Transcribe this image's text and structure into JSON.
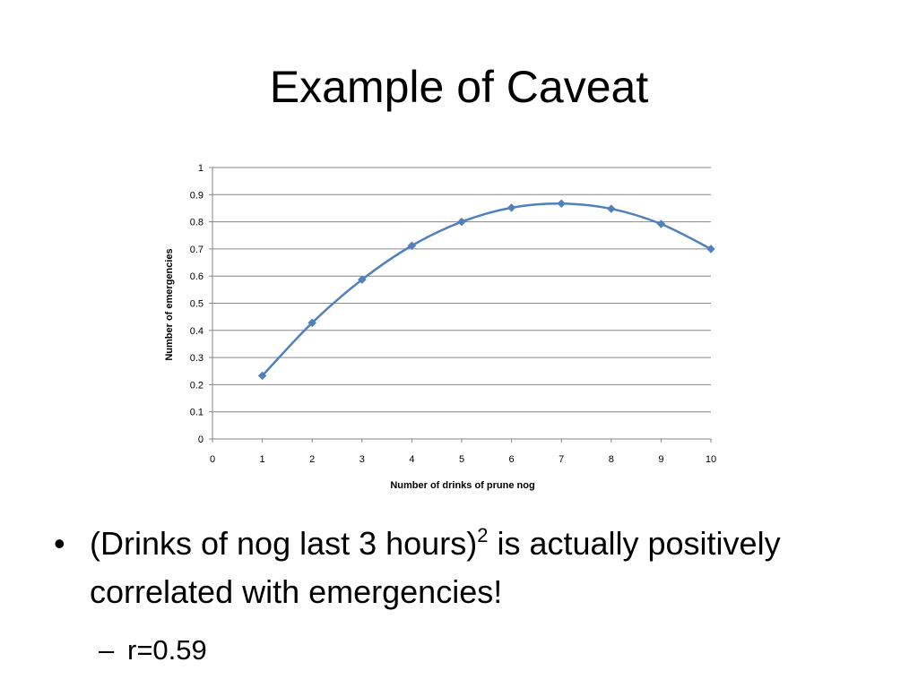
{
  "slide": {
    "title": "Example of Caveat",
    "bullet": {
      "marker": "•",
      "text_before": "(Drinks of nog last 3 hours)",
      "superscript": "2",
      "text_after": " is actually positively correlated with emergencies!"
    },
    "sub_bullet": {
      "marker": "–",
      "text": "r=0.59"
    }
  },
  "chart_data": {
    "type": "line",
    "title": "",
    "xlabel": "Number of drinks of prune nog",
    "ylabel": "Number of emergencies",
    "xlim": [
      0,
      10
    ],
    "ylim": [
      0,
      1
    ],
    "x_ticks": [
      "0",
      "1",
      "2",
      "3",
      "4",
      "5",
      "6",
      "7",
      "8",
      "9",
      "10"
    ],
    "y_ticks": [
      "0",
      "0.1",
      "0.2",
      "0.3",
      "0.4",
      "0.5",
      "0.6",
      "0.7",
      "0.8",
      "0.9",
      "1"
    ],
    "grid": true,
    "legend": "none",
    "series": [
      {
        "x": [
          1,
          2,
          3,
          4,
          5,
          6,
          7,
          8,
          9,
          10
        ],
        "values": [
          0.233,
          0.428,
          0.587,
          0.712,
          0.8,
          0.852,
          0.867,
          0.848,
          0.792,
          0.7
        ],
        "color": "#4F81BD",
        "marker": "diamond",
        "smooth": true
      }
    ],
    "gridline_color": "#868686",
    "axis_color": "#868686"
  }
}
